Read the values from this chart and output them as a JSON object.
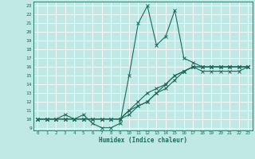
{
  "title": "",
  "xlabel": "Humidex (Indice chaleur)",
  "background_color": "#c0e8e4",
  "line_color": "#1a6b5a",
  "xlim": [
    -0.5,
    23.5
  ],
  "ylim": [
    8.7,
    23.5
  ],
  "xticks": [
    0,
    1,
    2,
    3,
    4,
    5,
    6,
    7,
    8,
    9,
    10,
    11,
    12,
    13,
    14,
    15,
    16,
    17,
    18,
    19,
    20,
    21,
    22,
    23
  ],
  "yticks": [
    9,
    10,
    11,
    12,
    13,
    14,
    15,
    16,
    17,
    18,
    19,
    20,
    21,
    22,
    23
  ],
  "line1_x": [
    0,
    1,
    2,
    3,
    4,
    5,
    6,
    7,
    8,
    9,
    10,
    11,
    12,
    13,
    14,
    15,
    16,
    17,
    18,
    19,
    20,
    21,
    22,
    23
  ],
  "line1_y": [
    10,
    10,
    10,
    10.5,
    10,
    10.5,
    9.5,
    9,
    9,
    9.5,
    15,
    21,
    23,
    18.5,
    19.5,
    22.5,
    17,
    16.5,
    16,
    16,
    16,
    16,
    16,
    16
  ],
  "line2_x": [
    0,
    1,
    2,
    3,
    4,
    5,
    6,
    7,
    8,
    9,
    10,
    11,
    12,
    13,
    14,
    15,
    16,
    17,
    18,
    19,
    20,
    21,
    22,
    23
  ],
  "line2_y": [
    10,
    10,
    10,
    10,
    10,
    10,
    10,
    10,
    10,
    10,
    11,
    12,
    13,
    13.5,
    14,
    15,
    15.5,
    16,
    16,
    16,
    16,
    16,
    16,
    16
  ],
  "line3_x": [
    0,
    1,
    2,
    3,
    4,
    5,
    6,
    7,
    8,
    9,
    10,
    11,
    12,
    13,
    14,
    15,
    16,
    17,
    18,
    19,
    20,
    21,
    22,
    23
  ],
  "line3_y": [
    10,
    10,
    10,
    10,
    10,
    10,
    10,
    10,
    10,
    10,
    10.5,
    11.5,
    12,
    13,
    13.5,
    14.5,
    15.5,
    16,
    15.5,
    15.5,
    15.5,
    15.5,
    15.5,
    16
  ],
  "line4_x": [
    0,
    1,
    2,
    3,
    4,
    5,
    6,
    7,
    8,
    9,
    10,
    11,
    12,
    13,
    14,
    15,
    16,
    17,
    18,
    19,
    20,
    21,
    22,
    23
  ],
  "line4_y": [
    10,
    10,
    10,
    10,
    10,
    10,
    10,
    10,
    10,
    10,
    11,
    11.5,
    12,
    13,
    14,
    15,
    15.5,
    16,
    16,
    16,
    16,
    16,
    16,
    16
  ]
}
